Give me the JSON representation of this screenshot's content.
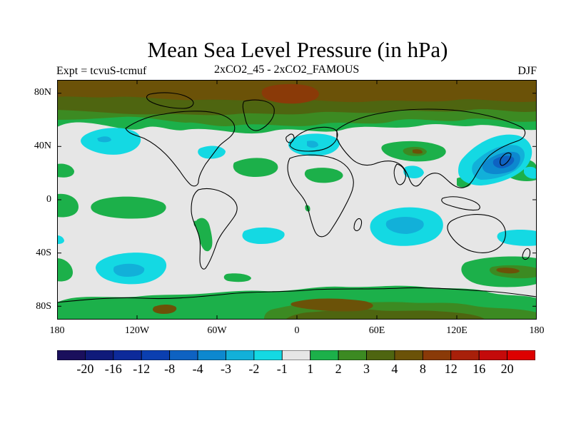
{
  "header": {
    "title": "Mean Sea Level Pressure (in hPa)",
    "left_label": "Expt = tcvuS-tcmuf",
    "center_label": "2xCO2_45 - 2xCO2_FAMOUS",
    "right_label": "DJF"
  },
  "axes": {
    "y_ticks": [
      "80N",
      "40N",
      "0",
      "40S",
      "80S"
    ],
    "x_ticks": [
      "180",
      "120W",
      "60W",
      "0",
      "60E",
      "120E",
      "180"
    ]
  },
  "colorbar": {
    "levels": [
      "-20",
      "-16",
      "-12",
      "-8",
      "-4",
      "-3",
      "-2",
      "-1",
      "1",
      "2",
      "3",
      "4",
      "8",
      "12",
      "16",
      "20"
    ],
    "colors": [
      "#1a0f5c",
      "#0f1a7a",
      "#0d2a9a",
      "#0b3fb0",
      "#0e62c2",
      "#0d88cf",
      "#12b0d9",
      "#14d9e3",
      "#e6e6e6",
      "#1cb04a",
      "#3c8a22",
      "#4e6510",
      "#6b5208",
      "#8a3a08",
      "#a8200a",
      "#c40a0a",
      "#dd0000"
    ]
  },
  "map_colors": {
    "ocean_neutral": "#e6e6e6",
    "pos_1_2": "#1cb04a",
    "pos_2_3": "#3c8a22",
    "pos_3_4": "#4e6510",
    "pos_4_8": "#6b5208",
    "pos_8_12": "#8a3a08",
    "neg_1": "#14d9e3",
    "neg_2": "#12b0d9",
    "neg_3": "#0d88cf",
    "neg_4": "#0e62c2",
    "coast": "#000000"
  }
}
